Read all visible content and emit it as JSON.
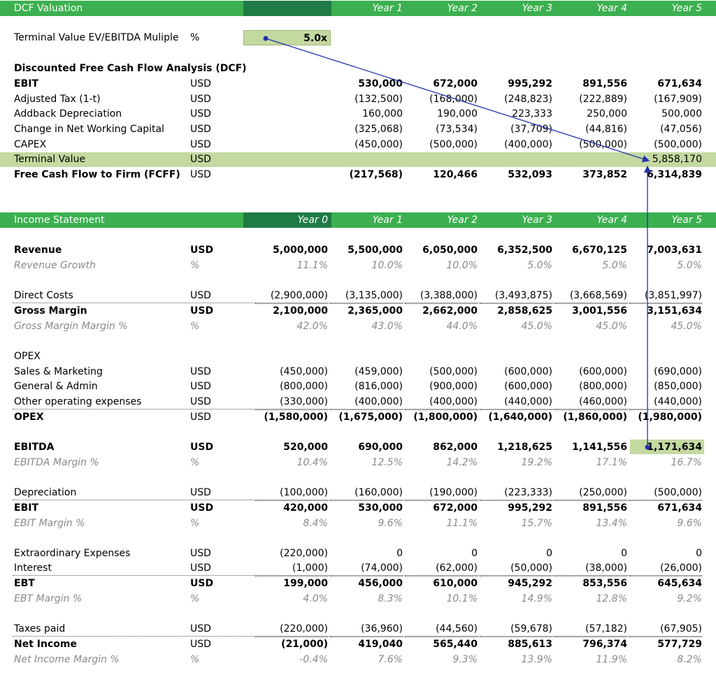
{
  "dcf": {
    "title": "DCF Valuation",
    "years": [
      "Year 1",
      "Year 2",
      "Year 3",
      "Year 4",
      "Year 5"
    ],
    "tv_label": "Terminal Value EV/EBITDA Muliple",
    "tv_unit": "%",
    "tv_value": "5.0x",
    "section": "Discounted Free Cash Flow Analysis (DCF)",
    "rows": [
      {
        "label": "EBIT",
        "unit": "USD",
        "vals": [
          "530,000",
          "672,000",
          "995,292",
          "891,556",
          "671,634"
        ],
        "bold": true
      },
      {
        "label": "Adjusted Tax (1-t)",
        "unit": "USD",
        "vals": [
          "(132,500)",
          "(168,000)",
          "(248,823)",
          "(222,889)",
          "(167,909)"
        ]
      },
      {
        "label": "Addback Depreciation",
        "unit": "USD",
        "vals": [
          "160,000",
          "190,000",
          "223,333",
          "250,000",
          "500,000"
        ]
      },
      {
        "label": "Change in Net Working Capital",
        "unit": "USD",
        "vals": [
          "(325,068)",
          "(73,534)",
          "(37,709)",
          "(44,816)",
          "(47,056)"
        ]
      },
      {
        "label": "CAPEX",
        "unit": "USD",
        "vals": [
          "(450,000)",
          "(500,000)",
          "(400,000)",
          "(500,000)",
          "(500,000)"
        ]
      },
      {
        "label": "Terminal Value",
        "unit": "USD",
        "vals": [
          "",
          "",
          "",
          "",
          "5,858,170"
        ],
        "hl": true
      },
      {
        "label": "Free Cash Flow to Firm (FCFF)",
        "unit": "USD",
        "vals": [
          "(217,568)",
          "120,466",
          "532,093",
          "373,852",
          "6,314,839"
        ],
        "bold": true
      }
    ]
  },
  "is": {
    "title": "Income Statement",
    "years": [
      "Year 0",
      "Year 1",
      "Year 2",
      "Year 3",
      "Year 4",
      "Year 5"
    ],
    "rows": [
      {
        "label": "Revenue",
        "unit": "USD",
        "vals": [
          "5,000,000",
          "5,500,000",
          "6,050,000",
          "6,352,500",
          "6,670,125",
          "7,003,631"
        ],
        "bold": true,
        "ub": true
      },
      {
        "label": "Revenue Growth",
        "unit": "%",
        "vals": [
          "11.1%",
          "10.0%",
          "10.0%",
          "5.0%",
          "5.0%",
          "5.0%"
        ],
        "grey": true
      },
      {
        "label": "Direct Costs",
        "unit": "USD",
        "vals": [
          "(2,900,000)",
          "(3,135,000)",
          "(3,388,000)",
          "(3,493,875)",
          "(3,668,569)",
          "(3,851,997)"
        ],
        "dot": true
      },
      {
        "label": "Gross Margin",
        "unit": "USD",
        "vals": [
          "2,100,000",
          "2,365,000",
          "2,662,000",
          "2,858,625",
          "3,001,556",
          "3,151,634"
        ],
        "bold": true,
        "ub": true
      },
      {
        "label": "Gross Margin Margin %",
        "unit": "%",
        "vals": [
          "42.0%",
          "43.0%",
          "44.0%",
          "45.0%",
          "45.0%",
          "45.0%"
        ],
        "grey": true
      },
      {
        "label": "OPEX",
        "unit": "",
        "vals": [
          "",
          "",
          "",
          "",
          "",
          ""
        ]
      },
      {
        "label": "Sales & Marketing",
        "unit": "USD",
        "vals": [
          "(450,000)",
          "(459,000)",
          "(500,000)",
          "(600,000)",
          "(600,000)",
          "(690,000)"
        ]
      },
      {
        "label": "General & Admin",
        "unit": "USD",
        "vals": [
          "(800,000)",
          "(816,000)",
          "(900,000)",
          "(600,000)",
          "(800,000)",
          "(850,000)"
        ]
      },
      {
        "label": "Other operating expenses",
        "unit": "USD",
        "vals": [
          "(330,000)",
          "(400,000)",
          "(400,000)",
          "(440,000)",
          "(460,000)",
          "(440,000)"
        ],
        "dot": true
      },
      {
        "label": "OPEX",
        "unit": "USD",
        "vals": [
          "(1,580,000)",
          "(1,675,000)",
          "(1,800,000)",
          "(1,640,000)",
          "(1,860,000)",
          "(1,980,000)"
        ],
        "bold": true
      },
      {
        "label": "EBITDA",
        "unit": "USD",
        "vals": [
          "520,000",
          "690,000",
          "862,000",
          "1,218,625",
          "1,141,556",
          "1,171,634"
        ],
        "bold": true,
        "ub": true
      },
      {
        "label": "EBITDA Margin %",
        "unit": "%",
        "vals": [
          "10.4%",
          "12.5%",
          "14.2%",
          "19.2%",
          "17.1%",
          "16.7%"
        ],
        "grey": true
      },
      {
        "label": "Depreciation",
        "unit": "USD",
        "vals": [
          "(100,000)",
          "(160,000)",
          "(190,000)",
          "(223,333)",
          "(250,000)",
          "(500,000)"
        ],
        "dot": true
      },
      {
        "label": "EBIT",
        "unit": "USD",
        "vals": [
          "420,000",
          "530,000",
          "672,000",
          "995,292",
          "891,556",
          "671,634"
        ],
        "bold": true,
        "ub": true
      },
      {
        "label": "EBIT Margin %",
        "unit": "%",
        "vals": [
          "8.4%",
          "9.6%",
          "11.1%",
          "15.7%",
          "13.4%",
          "9.6%"
        ],
        "grey": true
      },
      {
        "label": "Extraordinary Expenses",
        "unit": "USD",
        "vals": [
          "(220,000)",
          "0",
          "0",
          "0",
          "0",
          "0"
        ]
      },
      {
        "label": "Interest",
        "unit": "USD",
        "vals": [
          "(1,000)",
          "(74,000)",
          "(62,000)",
          "(50,000)",
          "(38,000)",
          "(26,000)"
        ],
        "dot": true
      },
      {
        "label": "EBT",
        "unit": "USD",
        "vals": [
          "199,000",
          "456,000",
          "610,000",
          "945,292",
          "853,556",
          "645,634"
        ],
        "bold": true,
        "ub": true
      },
      {
        "label": "EBT Margin %",
        "unit": "%",
        "vals": [
          "4.0%",
          "8.3%",
          "10.1%",
          "14.9%",
          "12.8%",
          "9.2%"
        ],
        "grey": true
      },
      {
        "label": "Taxes paid",
        "unit": "USD",
        "vals": [
          "(220,000)",
          "(36,960)",
          "(44,560)",
          "(59,678)",
          "(57,182)",
          "(67,905)"
        ],
        "dot": true
      },
      {
        "label": "Net Income",
        "unit": "USD",
        "vals": [
          "(21,000)",
          "419,040",
          "565,440",
          "885,613",
          "796,374",
          "577,729"
        ],
        "bold": true
      },
      {
        "label": "Net Income Margin %",
        "unit": "%",
        "vals": [
          "-0.4%",
          "7.6%",
          "9.3%",
          "13.9%",
          "11.9%",
          "8.2%"
        ],
        "grey": true
      }
    ]
  },
  "colors": {
    "header": "#3cb050",
    "header_dark": "#1e7b45",
    "highlight": "#c4d9a0",
    "arrow": "#2233aa"
  }
}
